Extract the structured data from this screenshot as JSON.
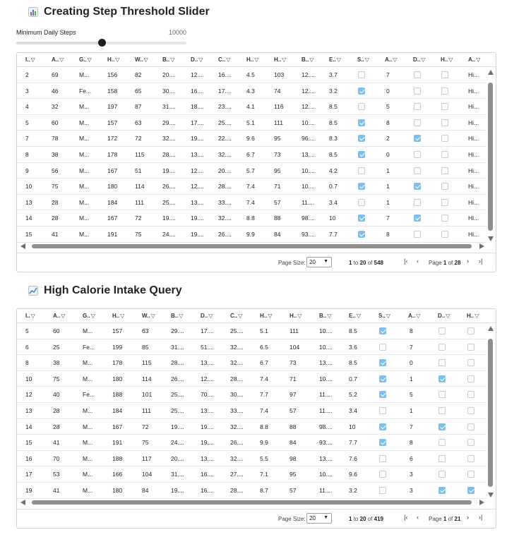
{
  "section1": {
    "title": "Creating Step Threshold Slider",
    "icon": "bar-chart-icon",
    "slider_label": "Minimum Daily Steps",
    "slider_value": "10000",
    "slider_fraction": 0.5
  },
  "section2": {
    "title": "High Calorie Intake Query",
    "icon": "line-chart-icon"
  },
  "grid1": {
    "columns": [
      "I..",
      "A..",
      "G..",
      "H..",
      "W..",
      "B..",
      "D..",
      "C..",
      "H..",
      "H..",
      "B..",
      "E..",
      "S..",
      "A..",
      "D..",
      "H..",
      "A.."
    ],
    "column_keys": [
      "I.",
      "A",
      "G",
      "H",
      "W",
      "B.",
      "D.",
      "C.",
      "H",
      "H",
      "B.",
      "E.",
      "S.",
      "A.",
      "D",
      "H",
      "A."
    ],
    "rows": [
      {
        "c": [
          "2",
          "69",
          "M...",
          "156",
          "82",
          "20....",
          "12....",
          "16....",
          "4.5",
          "103",
          "12....",
          "3.7"
        ],
        "s": false,
        "a": "7",
        "d": false,
        "h": false,
        "last": "Hi..."
      },
      {
        "c": [
          "3",
          "46",
          "Fe...",
          "158",
          "65",
          "30....",
          "16....",
          "17....",
          "4.3",
          "74",
          "12....",
          "3.2"
        ],
        "s": true,
        "a": "0",
        "d": false,
        "h": false,
        "last": "Hi..."
      },
      {
        "c": [
          "4",
          "32",
          "M...",
          "197",
          "87",
          "31....",
          "18....",
          "23....",
          "4.1",
          "116",
          "12....",
          "8.5"
        ],
        "s": false,
        "a": "5",
        "d": false,
        "h": false,
        "last": "Hi..."
      },
      {
        "c": [
          "5",
          "60",
          "M...",
          "157",
          "63",
          "29....",
          "17....",
          "25....",
          "5.1",
          "111",
          "10....",
          "8.5"
        ],
        "s": true,
        "a": "8",
        "d": false,
        "h": false,
        "last": "Hi..."
      },
      {
        "c": [
          "7",
          "78",
          "M...",
          "172",
          "72",
          "32....",
          "19....",
          "22....",
          "9.6",
          "95",
          "96....",
          "8.3"
        ],
        "s": true,
        "a": "2",
        "d": true,
        "h": false,
        "last": "Hi..."
      },
      {
        "c": [
          "8",
          "38",
          "M...",
          "178",
          "115",
          "28....",
          "13....",
          "32....",
          "6.7",
          "73",
          "13....",
          "8.5"
        ],
        "s": true,
        "a": "0",
        "d": false,
        "h": false,
        "last": "Hi..."
      },
      {
        "c": [
          "9",
          "56",
          "M...",
          "167",
          "51",
          "19....",
          "12....",
          "20....",
          "5.7",
          "95",
          "10....",
          "4.2"
        ],
        "s": false,
        "a": "1",
        "d": false,
        "h": false,
        "last": "Hi..."
      },
      {
        "c": [
          "10",
          "75",
          "M...",
          "180",
          "114",
          "26....",
          "12....",
          "28....",
          "7.4",
          "71",
          "10....",
          "0.7"
        ],
        "s": true,
        "a": "1",
        "d": true,
        "h": false,
        "last": "Hi..."
      },
      {
        "c": [
          "13",
          "28",
          "M...",
          "184",
          "111",
          "25....",
          "13....",
          "33....",
          "7.4",
          "57",
          "11....",
          "3.4"
        ],
        "s": false,
        "a": "1",
        "d": false,
        "h": false,
        "last": "Hi..."
      },
      {
        "c": [
          "14",
          "28",
          "M...",
          "167",
          "72",
          "19....",
          "19....",
          "32....",
          "8.8",
          "88",
          "98....",
          "10"
        ],
        "s": true,
        "a": "7",
        "d": true,
        "h": false,
        "last": "Hi..."
      },
      {
        "c": [
          "15",
          "41",
          "M...",
          "191",
          "75",
          "24....",
          "19....",
          "26....",
          "9.9",
          "84",
          "93....",
          "7.7"
        ],
        "s": true,
        "a": "8",
        "d": false,
        "h": false,
        "last": "Hi..."
      }
    ],
    "pager": {
      "page_size_label": "Page Size:",
      "page_size": "20",
      "from": "1",
      "to_word": "to",
      "to": "20",
      "of_word": "of",
      "total": "548",
      "page_word": "Page",
      "page": "1",
      "pages": "28"
    }
  },
  "grid2": {
    "columns": [
      "I..",
      "A..",
      "G..",
      "H..",
      "W..",
      "B..",
      "D..",
      "C..",
      "H..",
      "H..",
      "B..",
      "E..",
      "S..",
      "A..",
      "D..",
      "H.."
    ],
    "rows": [
      {
        "c": [
          "5",
          "60",
          "M...",
          "157",
          "63",
          "29....",
          "17....",
          "25....",
          "5.1",
          "111",
          "10....",
          "8.5"
        ],
        "s": true,
        "a": "8",
        "d": false,
        "h": false
      },
      {
        "c": [
          "6",
          "25",
          "Fe...",
          "199",
          "85",
          "31....",
          "51....",
          "32....",
          "6.5",
          "104",
          "10....",
          "3.6"
        ],
        "s": false,
        "a": "7",
        "d": false,
        "h": false
      },
      {
        "c": [
          "8",
          "38",
          "M...",
          "178",
          "115",
          "28....",
          "13....",
          "32....",
          "6.7",
          "73",
          "13....",
          "8.5"
        ],
        "s": true,
        "a": "0",
        "d": false,
        "h": false
      },
      {
        "c": [
          "10",
          "75",
          "M...",
          "180",
          "114",
          "26....",
          "12....",
          "28....",
          "7.4",
          "71",
          "10....",
          "0.7"
        ],
        "s": true,
        "a": "1",
        "d": true,
        "h": false
      },
      {
        "c": [
          "12",
          "40",
          "Fe...",
          "188",
          "101",
          "25....",
          "70....",
          "30....",
          "7.7",
          "97",
          "11....",
          "5.2"
        ],
        "s": true,
        "a": "5",
        "d": false,
        "h": false
      },
      {
        "c": [
          "13",
          "28",
          "M...",
          "184",
          "111",
          "25....",
          "13....",
          "33....",
          "7.4",
          "57",
          "11....",
          "3.4"
        ],
        "s": false,
        "a": "1",
        "d": false,
        "h": false
      },
      {
        "c": [
          "14",
          "28",
          "M...",
          "167",
          "72",
          "19....",
          "19....",
          "32....",
          "8.8",
          "88",
          "98....",
          "10"
        ],
        "s": true,
        "a": "7",
        "d": true,
        "h": false
      },
      {
        "c": [
          "15",
          "41",
          "M...",
          "191",
          "75",
          "24....",
          "19....",
          "26....",
          "9.9",
          "84",
          "93....",
          "7.7"
        ],
        "s": true,
        "a": "8",
        "d": false,
        "h": false
      },
      {
        "c": [
          "16",
          "70",
          "M...",
          "188",
          "117",
          "20....",
          "13....",
          "32....",
          "5.5",
          "98",
          "13....",
          "7.6"
        ],
        "s": false,
        "a": "6",
        "d": false,
        "h": false
      },
      {
        "c": [
          "17",
          "53",
          "M...",
          "166",
          "104",
          "31....",
          "16....",
          "27....",
          "7.1",
          "95",
          "10....",
          "9.6"
        ],
        "s": false,
        "a": "3",
        "d": false,
        "h": false
      },
      {
        "c": [
          "19",
          "41",
          "M...",
          "180",
          "84",
          "19....",
          "16....",
          "28....",
          "8.7",
          "57",
          "11....",
          "3.2"
        ],
        "s": false,
        "a": "3",
        "d": true,
        "h": true
      }
    ],
    "pager": {
      "page_size_label": "Page Size:",
      "page_size": "20",
      "from": "1",
      "to_word": "to",
      "to": "20",
      "of_word": "of",
      "total": "419",
      "page_word": "Page",
      "page": "1",
      "pages": "21"
    }
  },
  "colors": {
    "checked": "#7cbfe8",
    "scrollbar": "#8e8e8e",
    "border": "#d0d4da"
  }
}
